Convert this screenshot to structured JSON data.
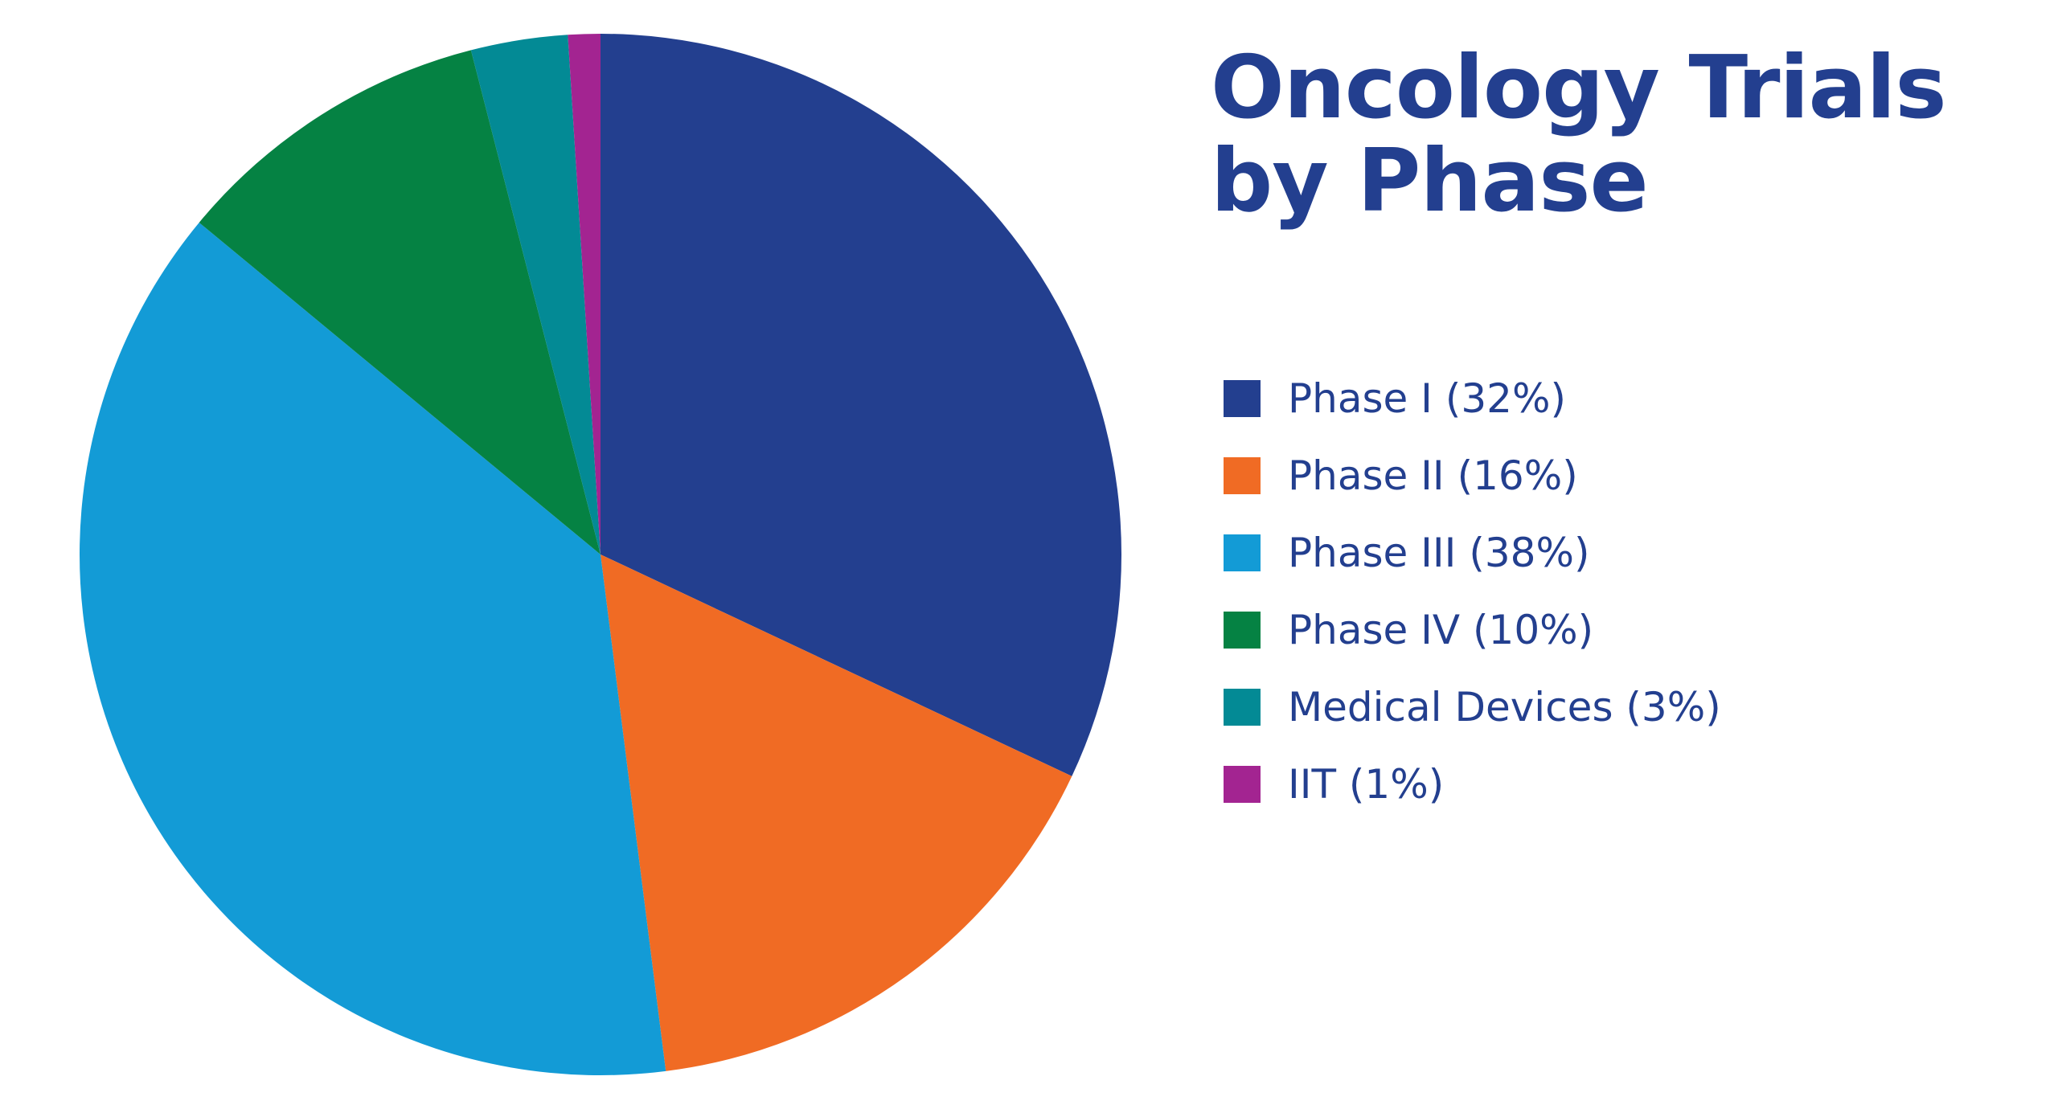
{
  "chart_data": {
    "type": "pie",
    "title": [
      "Oncology Trials",
      "by Phase"
    ],
    "legend_position": "right",
    "slices": [
      {
        "label": "Phase I (32%)",
        "value": 32,
        "color": "#233f8f"
      },
      {
        "label": "Phase II (16%)",
        "value": 16,
        "color": "#f06b24"
      },
      {
        "label": "Phase III (38%)",
        "value": 38,
        "color": "#139bd6"
      },
      {
        "label": "Phase IV (10%)",
        "value": 10,
        "color": "#058243"
      },
      {
        "label": "Medical Devices (3%)",
        "value": 3,
        "color": "#038a95"
      },
      {
        "label": "IIT (1%)",
        "value": 1,
        "color": "#a32491"
      }
    ]
  }
}
